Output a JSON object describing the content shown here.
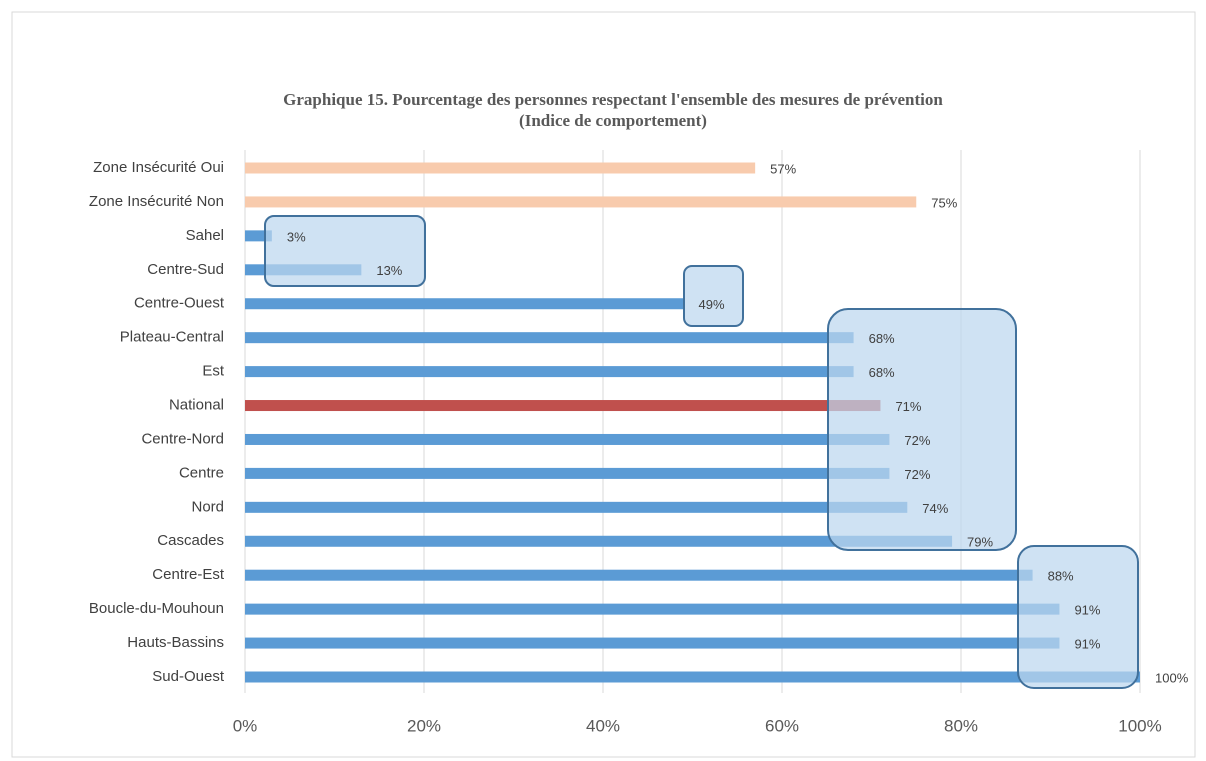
{
  "chart_data": {
    "type": "hbar",
    "title": "Graphique 15. Pourcentage des personnes respectant l'ensemble des mesures de prévention",
    "subtitle": "(Indice de comportement)",
    "categories": [
      "Zone Insécurité Oui",
      "Zone Insécurité Non",
      "Sahel",
      "Centre-Sud",
      "Centre-Ouest",
      "Plateau-Central",
      "Est",
      "National",
      "Centre-Nord",
      "Centre",
      "Nord",
      "Cascades",
      "Centre-Est",
      "Boucle-du-Mouhoun",
      "Hauts-Bassins",
      "Sud-Ouest"
    ],
    "values": [
      57,
      75,
      3,
      13,
      49,
      68,
      68,
      71,
      72,
      72,
      74,
      79,
      88,
      91,
      91,
      100
    ],
    "value_labels": [
      "57%",
      "75%",
      "3%",
      "13%",
      "49%",
      "68%",
      "68%",
      "71%",
      "72%",
      "72%",
      "74%",
      "79%",
      "88%",
      "91%",
      "91%",
      "100%"
    ],
    "colors": [
      "#f8cbad",
      "#f8cbad",
      "#5b9bd5",
      "#5b9bd5",
      "#5b9bd5",
      "#5b9bd5",
      "#5b9bd5",
      "#c0504d",
      "#5b9bd5",
      "#5b9bd5",
      "#5b9bd5",
      "#5b9bd5",
      "#5b9bd5",
      "#5b9bd5",
      "#5b9bd5",
      "#5b9bd5"
    ],
    "xlim": [
      0,
      100
    ],
    "xticks": [
      {
        "value": 0,
        "label": "0%"
      },
      {
        "value": 20,
        "label": "20%"
      },
      {
        "value": 40,
        "label": "40%"
      },
      {
        "value": 60,
        "label": "60%"
      },
      {
        "value": 80,
        "label": "80%"
      },
      {
        "value": 100,
        "label": "100%"
      }
    ],
    "grid": true
  }
}
